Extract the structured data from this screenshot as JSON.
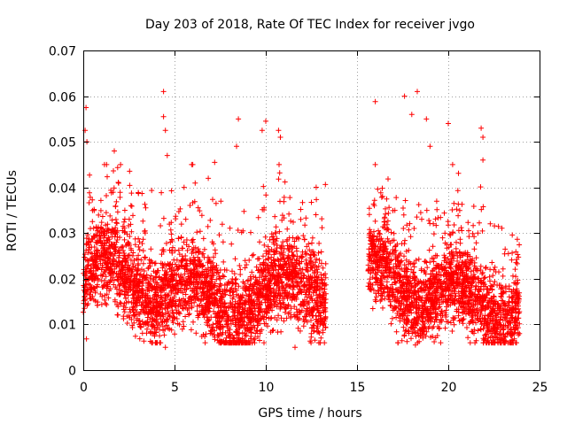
{
  "chart_data": {
    "type": "scatter",
    "title": "Day 203 of 2018, Rate Of TEC Index for receiver jvgo",
    "xlabel": "GPS time / hours",
    "ylabel": "ROTI / TECUs",
    "xlim": [
      0,
      25
    ],
    "ylim": [
      0,
      0.07
    ],
    "xticks": [
      0,
      5,
      10,
      15,
      20,
      25
    ],
    "xtick_labels": [
      "0",
      "5",
      "10",
      "15",
      "20",
      "25"
    ],
    "yticks": [
      0,
      0.01,
      0.02,
      0.03,
      0.04,
      0.05,
      0.06,
      0.07
    ],
    "ytick_labels": [
      "0",
      "0.01",
      "0.02",
      "0.03",
      "0.04",
      "0.05",
      "0.06",
      "0.07"
    ],
    "grid": true,
    "marker": "plus",
    "color": "#ff0000",
    "series": [
      {
        "name": "ROTI",
        "coverage_hours": [
          [
            0.0,
            13.3
          ],
          [
            15.6,
            23.9
          ]
        ],
        "typical_range": [
          0.01,
          0.03
        ],
        "notable_points": [
          {
            "x": 0.15,
            "y": 0.0575
          },
          {
            "x": 0.1,
            "y": 0.0525
          },
          {
            "x": 0.2,
            "y": 0.05
          },
          {
            "x": 1.7,
            "y": 0.048
          },
          {
            "x": 4.4,
            "y": 0.061
          },
          {
            "x": 4.4,
            "y": 0.0555
          },
          {
            "x": 4.5,
            "y": 0.0525
          },
          {
            "x": 4.6,
            "y": 0.047
          },
          {
            "x": 8.5,
            "y": 0.055
          },
          {
            "x": 8.4,
            "y": 0.049
          },
          {
            "x": 9.8,
            "y": 0.0525
          },
          {
            "x": 10.0,
            "y": 0.0545
          },
          {
            "x": 10.7,
            "y": 0.0525
          },
          {
            "x": 10.8,
            "y": 0.051
          },
          {
            "x": 7.2,
            "y": 0.0455
          },
          {
            "x": 16.0,
            "y": 0.0588
          },
          {
            "x": 17.6,
            "y": 0.06
          },
          {
            "x": 18.3,
            "y": 0.061
          },
          {
            "x": 18.0,
            "y": 0.056
          },
          {
            "x": 18.8,
            "y": 0.055
          },
          {
            "x": 19.0,
            "y": 0.049
          },
          {
            "x": 20.0,
            "y": 0.054
          },
          {
            "x": 21.8,
            "y": 0.053
          },
          {
            "x": 21.9,
            "y": 0.051
          },
          {
            "x": 21.9,
            "y": 0.046
          },
          {
            "x": 4.5,
            "y": 0.005
          },
          {
            "x": 11.6,
            "y": 0.005
          },
          {
            "x": 18.2,
            "y": 0.0055
          },
          {
            "x": 22.4,
            "y": 0.006
          }
        ]
      }
    ]
  }
}
